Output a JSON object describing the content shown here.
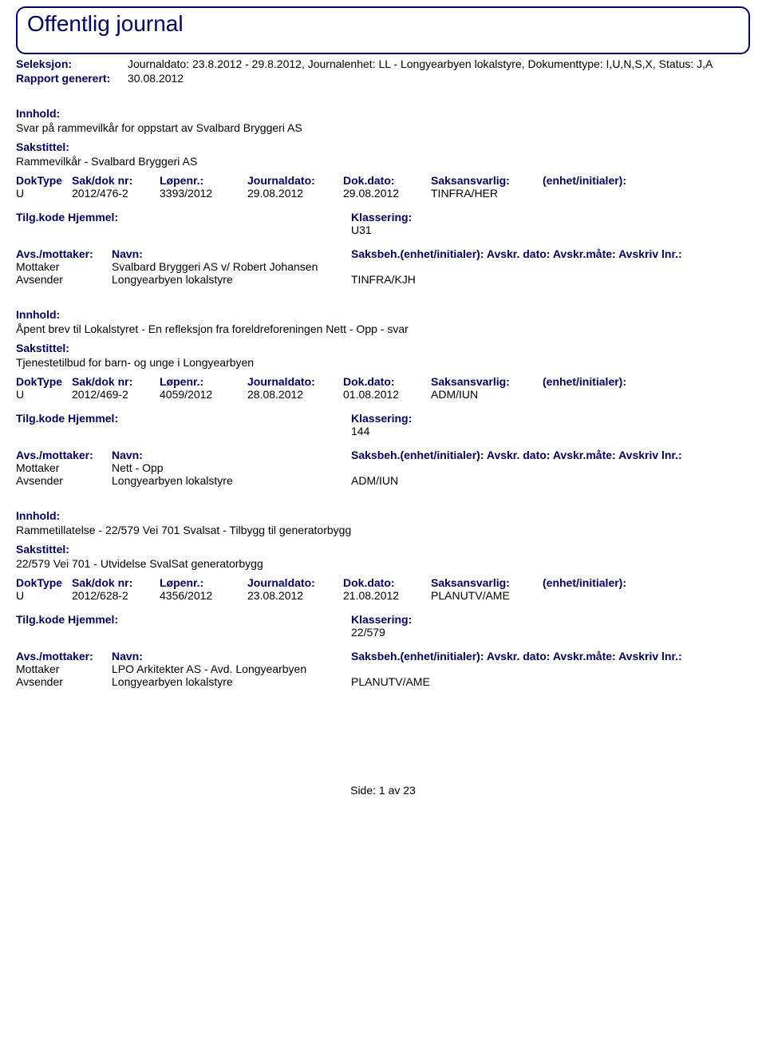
{
  "title": "Offentlig journal",
  "header": {
    "seleksjon_label": "Seleksjon:",
    "seleksjon_value": "Journaldato: 23.8.2012 - 29.8.2012, Journalenhet: LL - Longyearbyen lokalstyre, Dokumenttype: I,U,N,S,X, Status: J,A",
    "rapport_label": "Rapport generert:",
    "rapport_value": "30.08.2012"
  },
  "labels": {
    "innhold": "Innhold:",
    "sakstittel": "Sakstittel:",
    "doktype": "DokType",
    "sakdok": "Sak/dok nr:",
    "lopenr": "Løpenr.:",
    "journaldato": "Journaldato:",
    "dokdato": "Dok.dato:",
    "saksansvarlig": "Saksansvarlig:",
    "enhet": "(enhet/initialer):",
    "tilgkode": "Tilg.kode",
    "hjemmel": "Hjemmel:",
    "klassering": "Klassering:",
    "avsmottaker": "Avs./mottaker:",
    "navn": "Navn:",
    "saksbeh_line": "Saksbeh.(enhet/initialer): Avskr. dato: Avskr.måte: Avskriv lnr.:",
    "mottaker": "Mottaker",
    "avsender": "Avsender"
  },
  "entries": [
    {
      "innhold": "Svar på rammevilkår for oppstart av Svalbard Bryggeri AS",
      "sakstittel": "Rammevilkår - Svalbard Bryggeri AS",
      "doktype": "U",
      "sakdok": "2012/476-2",
      "lopenr": "3393/2012",
      "journaldato": "29.08.2012",
      "dokdato": "29.08.2012",
      "saksansvarlig": "TINFRA/HER",
      "klassering": "U31",
      "mottaker_name": "Svalbard Bryggeri AS v/ Robert Johansen",
      "avsender_name": "Longyearbyen lokalstyre",
      "avsender_code": "TINFRA/KJH"
    },
    {
      "innhold": "Åpent brev til Lokalstyret - En refleksjon fra foreldreforeningen Nett - Opp - svar",
      "sakstittel": "Tjenestetilbud for barn- og unge i Longyearbyen",
      "doktype": "U",
      "sakdok": "2012/469-2",
      "lopenr": "4059/2012",
      "journaldato": "28.08.2012",
      "dokdato": "01.08.2012",
      "saksansvarlig": "ADM/IUN",
      "klassering": "144",
      "mottaker_name": "Nett - Opp",
      "avsender_name": "Longyearbyen lokalstyre",
      "avsender_code": "ADM/IUN"
    },
    {
      "innhold": "Rammetillatelse - 22/579 Vei 701 Svalsat - Tilbygg til generatorbygg",
      "sakstittel": "22/579 Vei 701 - Utvidelse SvalSat generatorbygg",
      "doktype": "U",
      "sakdok": "2012/628-2",
      "lopenr": "4356/2012",
      "journaldato": "23.08.2012",
      "dokdato": "21.08.2012",
      "saksansvarlig": "PLANUTV/AME",
      "klassering": "22/579",
      "mottaker_name": "LPO Arkitekter AS - Avd. Longyearbyen",
      "avsender_name": "Longyearbyen lokalstyre",
      "avsender_code": "PLANUTV/AME"
    }
  ],
  "footer": {
    "side_label": "Side:",
    "page": "1",
    "av": "av",
    "total": "23"
  }
}
